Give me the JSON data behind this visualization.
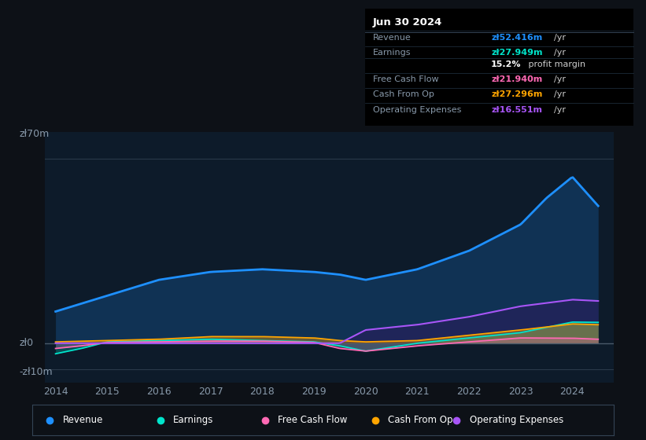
{
  "bg_color": "#0d1117",
  "chart_bg": "#0d1b2a",
  "title_box_date": "Jun 30 2024",
  "ylabel_top": "zł70m",
  "ylabel_zero": "zł0",
  "ylabel_neg": "-zł10m",
  "x_ticks": [
    2014,
    2015,
    2016,
    2017,
    2018,
    2019,
    2020,
    2021,
    2022,
    2023,
    2024
  ],
  "ylim": [
    -15,
    80
  ],
  "colors": {
    "revenue": "#1e90ff",
    "earnings": "#00e5cc",
    "free_cash_flow": "#ff69b4",
    "cash_from_op": "#ffa500",
    "operating_expenses": "#a855f7"
  },
  "legend_labels": [
    "Revenue",
    "Earnings",
    "Free Cash Flow",
    "Cash From Op",
    "Operating Expenses"
  ],
  "legend_colors": [
    "#1e90ff",
    "#00e5cc",
    "#ff69b4",
    "#ffa500",
    "#a855f7"
  ]
}
